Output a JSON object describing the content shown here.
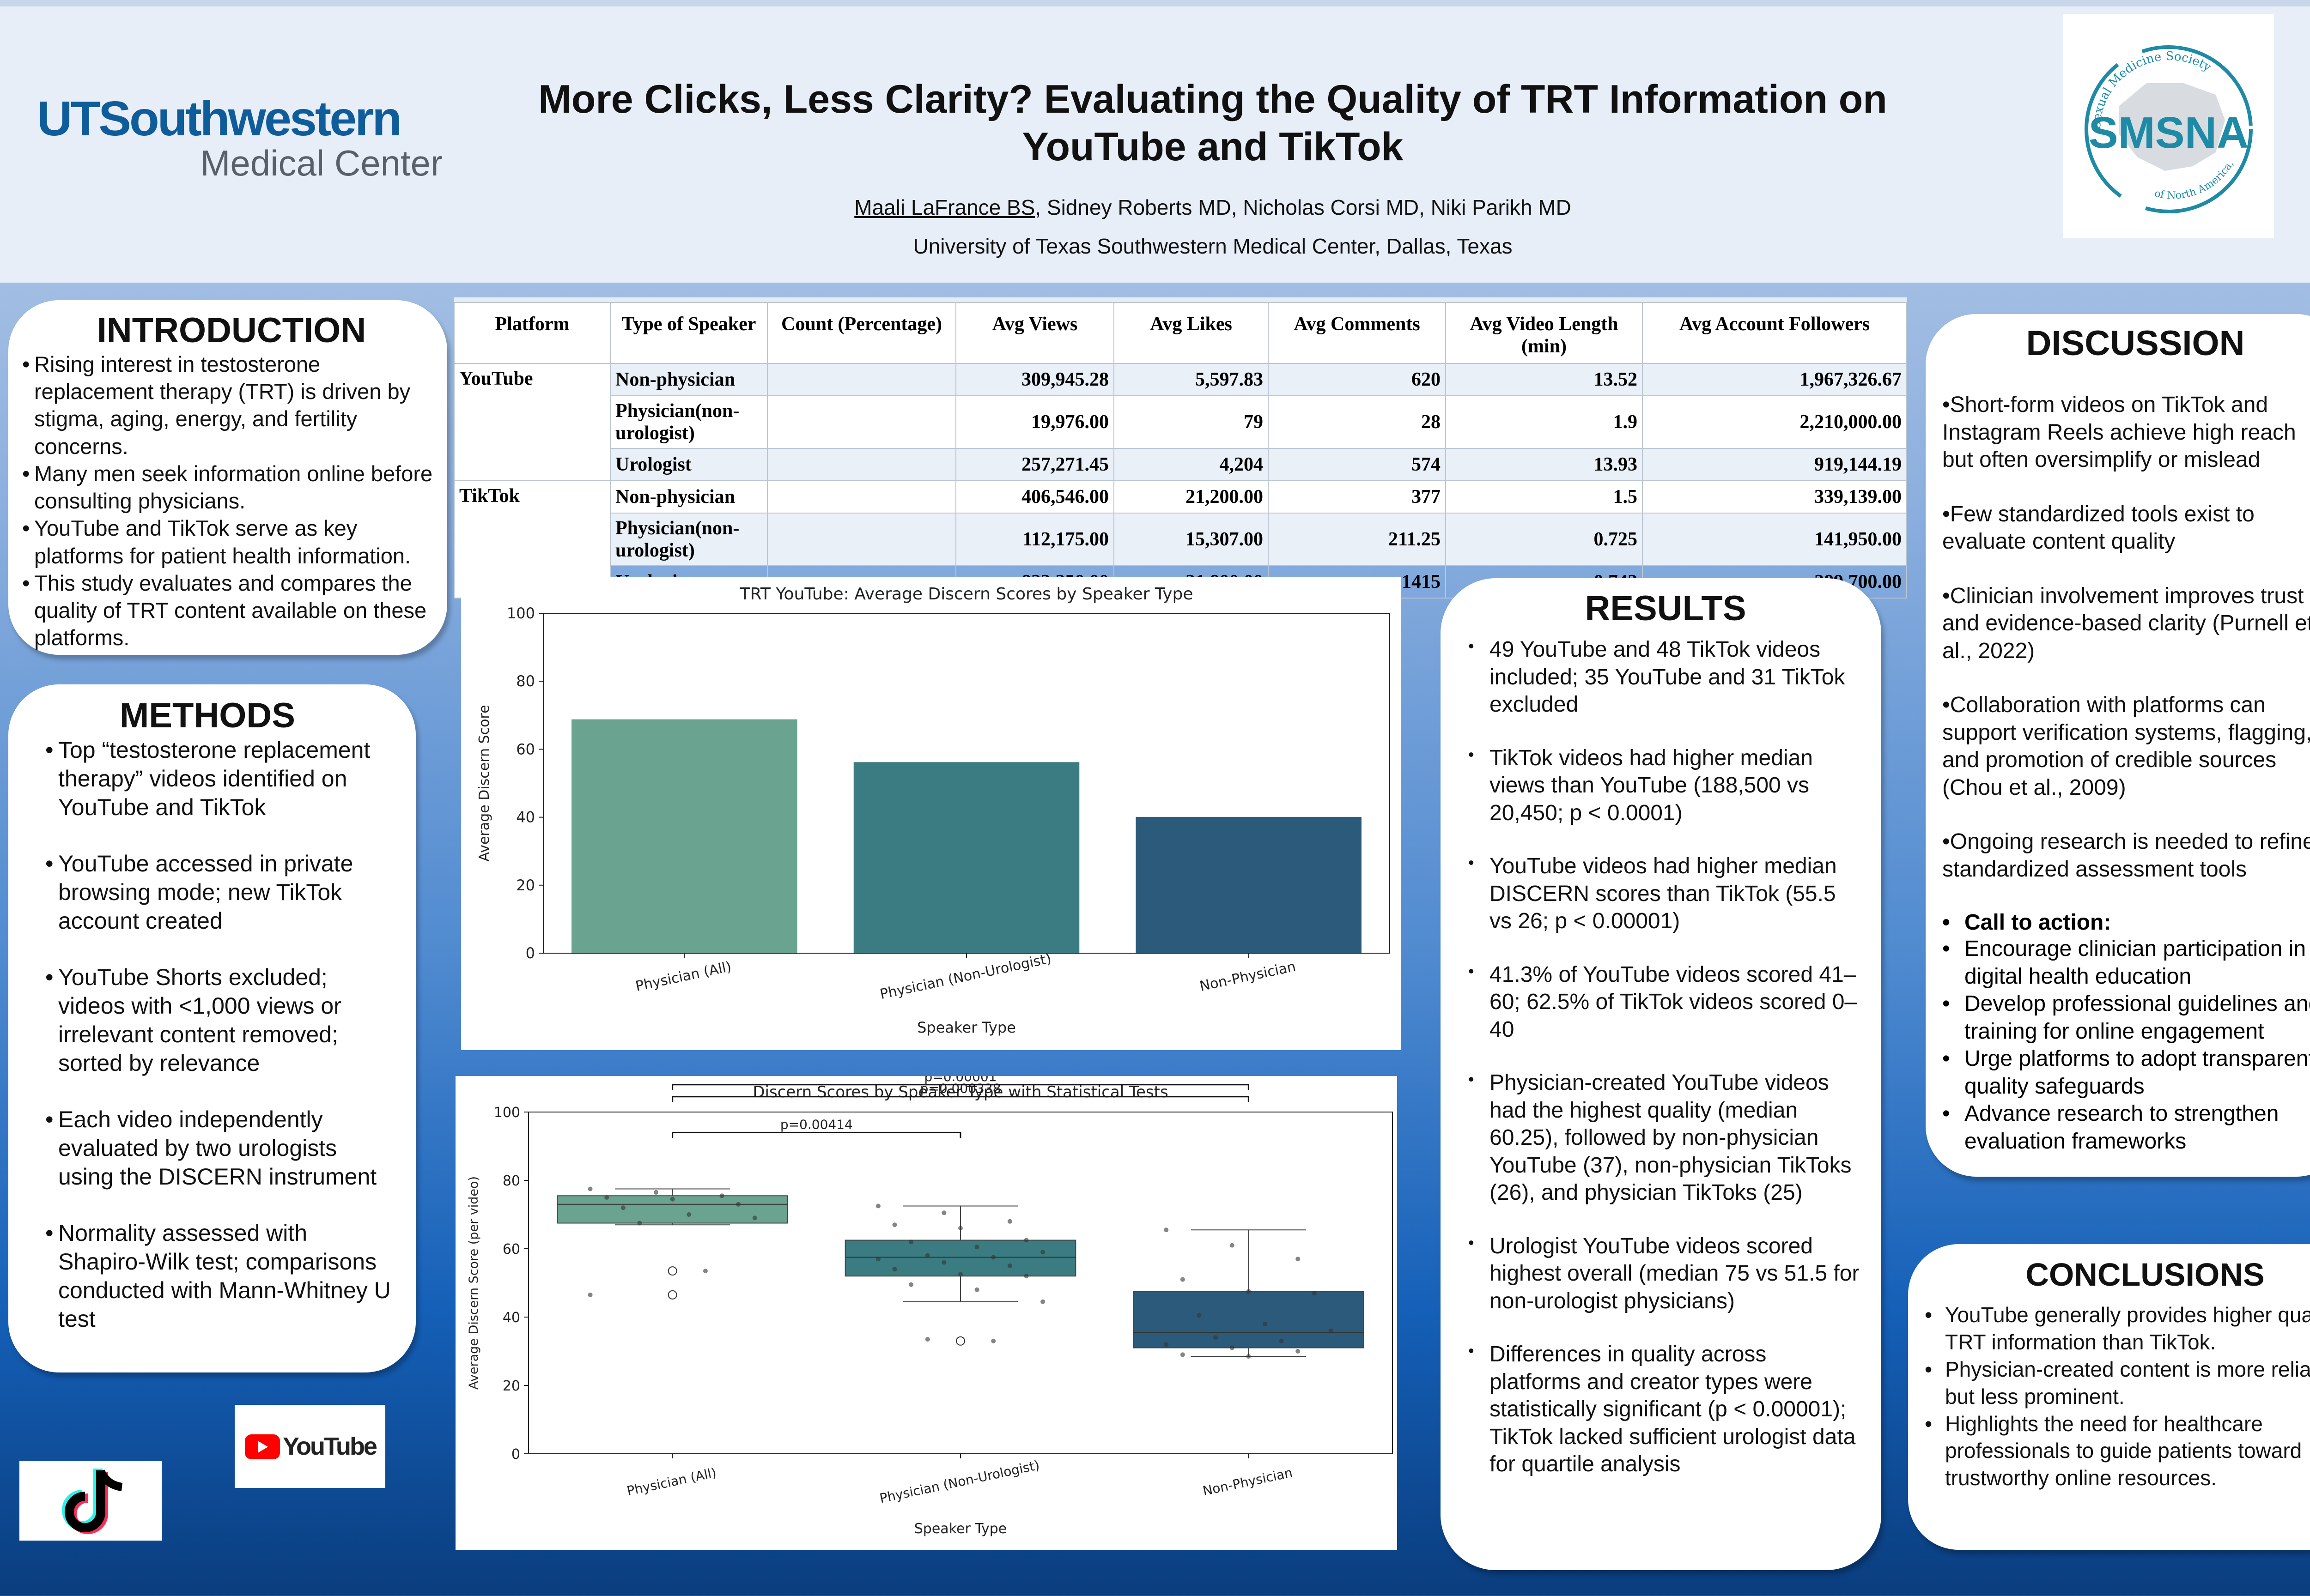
{
  "header": {
    "org_line1": "UTSouthwestern",
    "org_line2": "Medical Center",
    "title": "More Clicks, Less Clarity? Evaluating the Quality of TRT Information on YouTube and TikTok",
    "presenting_author": "Maali LaFrance BS",
    "other_authors": ", Sidney Roberts MD, Nicholas Corsi MD, Niki Parikh MD",
    "affiliation": "University of Texas Southwestern Medical Center, Dallas, Texas",
    "society_arc_top": "Sexual Medicine Society",
    "society_name": "SMSNA",
    "society_arc_bottom": "of North America, Inc."
  },
  "introduction": {
    "heading": "INTRODUCTION",
    "bullets": [
      "Rising interest in testosterone replacement therapy (TRT) is driven by stigma, aging, energy, and fertility concerns.",
      "Many men seek information online before consulting physicians.",
      "YouTube and TikTok serve as key platforms for patient health information.",
      "This study evaluates and compares the quality of TRT content available on these platforms."
    ]
  },
  "methods": {
    "heading": "METHODS",
    "bullets": [
      "Top “testosterone replacement therapy” videos identified on YouTube and TikTok",
      "YouTube accessed in private browsing mode; new TikTok account created",
      "YouTube Shorts excluded; videos with <1,000 views or irrelevant content removed; sorted by relevance",
      "Each video independently evaluated by two urologists using the DISCERN instrument",
      "Normality assessed with Shapiro-Wilk test; comparisons conducted with Mann-Whitney U test"
    ]
  },
  "table": {
    "headers": [
      "Platform",
      "Type of Speaker",
      "Count (Percentage)",
      "Avg Views",
      "Avg Likes",
      "Avg Comments",
      "Avg Video Length (min)",
      "Avg Account Followers"
    ],
    "platforms": [
      "YouTube",
      "TikTok"
    ],
    "rows": [
      {
        "speaker": "Non-physician",
        "count": "",
        "views": "309,945.28",
        "likes": "5,597.83",
        "comments": "620",
        "length": "13.52",
        "followers": "1,967,326.67"
      },
      {
        "speaker": "Physician(non-urologist)",
        "count": "",
        "views": "19,976.00",
        "likes": "79",
        "comments": "28",
        "length": "1.9",
        "followers": "2,210,000.00"
      },
      {
        "speaker": "Urologist",
        "count": "",
        "views": "257,271.45",
        "likes": "4,204",
        "comments": "574",
        "length": "13.93",
        "followers": "919,144.19"
      },
      {
        "speaker": "Non-physician",
        "count": "",
        "views": "406,546.00",
        "likes": "21,200.00",
        "comments": "377",
        "length": "1.5",
        "followers": "339,139.00"
      },
      {
        "speaker": "Physician(non-urologist)",
        "count": "",
        "views": "112,175.00",
        "likes": "15,307.00",
        "comments": "211.25",
        "length": "0.725",
        "followers": "141,950.00"
      },
      {
        "speaker": "Urologist",
        "count": "",
        "views": "823,250.00",
        "likes": "21,800.00",
        "comments": "1415",
        "length": "0.742",
        "followers": "289,700.00"
      }
    ]
  },
  "chart_data": [
    {
      "type": "bar",
      "title": "TRT YouTube: Average Discern Scores by Speaker Type",
      "xlabel": "Speaker Type",
      "ylabel": "Average Discern Score",
      "categories": [
        "Physician (All)",
        "Physician (Non-Urologist)",
        "Non-Physician"
      ],
      "values": [
        68.8,
        56.2,
        40.1
      ],
      "ylim": [
        0,
        100
      ],
      "yticks": [
        "0",
        "20",
        "40",
        "60",
        "80",
        "100"
      ],
      "colors": [
        "#6aa38f",
        "#3b7b82",
        "#2c5a7a"
      ]
    },
    {
      "type": "box",
      "title": "Discern Scores by Speaker Type with Statistical Tests",
      "xlabel": "Speaker Type",
      "ylabel": "Average Discern Score (per video)",
      "categories": [
        "Physician (All)",
        "Physician (Non-Urologist)",
        "Non-Physician"
      ],
      "ylim": [
        0,
        100
      ],
      "yticks": [
        "0",
        "20",
        "40",
        "60",
        "80",
        "100"
      ],
      "boxes": [
        {
          "whisker_low": 67,
          "q1": 67.5,
          "median": 73,
          "q3": 75.5,
          "whisker_high": 77.5,
          "outliers": [
            53.5,
            46.5
          ],
          "points": [
            77.5,
            76.5,
            75.5,
            75,
            74.5,
            73,
            72,
            70,
            69,
            67.5,
            53.5,
            46.5
          ]
        },
        {
          "whisker_low": 44.5,
          "q1": 52,
          "median": 57.5,
          "q3": 62.5,
          "whisker_high": 72.5,
          "outliers": [
            33
          ],
          "points": [
            72.5,
            70.5,
            68,
            67,
            66,
            62.5,
            62,
            60.5,
            59,
            58,
            57.5,
            57,
            56,
            55,
            54,
            52.5,
            52,
            49.5,
            48,
            44.5,
            33.5,
            33
          ]
        },
        {
          "whisker_low": 28.5,
          "q1": 31,
          "median": 35.5,
          "q3": 47.5,
          "whisker_high": 65.5,
          "outliers": [],
          "points": [
            65.5,
            61,
            57,
            51,
            47.5,
            47,
            40.5,
            38,
            36,
            34,
            33,
            32,
            31,
            30,
            29,
            28.5
          ]
        }
      ],
      "colors": [
        "#6aa38f",
        "#3b7b82",
        "#2c5a7a"
      ],
      "annotations": [
        "p=0.00414",
        "p=0.000338",
        "p=0.00001"
      ]
    }
  ],
  "results": {
    "heading": "RESULTS",
    "bullets": [
      "49 YouTube and 48 TikTok videos included; 35 YouTube and 31 TikTok excluded",
      "TikTok videos had higher median views than YouTube (188,500 vs 20,450; p < 0.0001)",
      "YouTube videos had higher median DISCERN scores than TikTok (55.5 vs 26; p < 0.00001)",
      "41.3% of YouTube videos scored 41–60; 62.5% of TikTok videos scored 0–40",
      "Physician-created YouTube videos had the highest quality (median 60.25), followed by non-physician YouTube (37), non-physician TikToks (26), and physician TikToks (25)",
      "Urologist YouTube videos scored highest overall (median 75 vs 51.5 for non-urologist physicians)",
      "Differences in quality across platforms and creator types were statistically significant (p < 0.00001); TikTok lacked sufficient urologist data for quartile analysis"
    ]
  },
  "discussion": {
    "heading": "DISCUSSION",
    "bullets": [
      "•Short-form videos on TikTok and Instagram Reels achieve high reach but often oversimplify or mislead",
      "•Few standardized tools exist to evaluate content quality",
      "•Clinician involvement improves trust and evidence-based clarity (Purnell et al., 2022)",
      "•Collaboration with platforms can support verification systems, flagging, and promotion of credible sources (Chou et al., 2009)",
      "•Ongoing research is needed to refine standardized assessment tools"
    ],
    "cta_title": "Call to action:",
    "cta_items": [
      "Encourage clinician participation in digital health education",
      "Develop professional guidelines and training for online engagement",
      "Urge platforms to adopt transparent quality safeguards",
      "Advance research to strengthen evaluation frameworks"
    ]
  },
  "conclusions": {
    "heading": "CONCLUSIONS",
    "bullets": [
      "YouTube generally provides higher quality TRT information than TikTok.",
      "Physician-created content is more reliable but less prominent.",
      "Highlights the need for healthcare professionals to guide patients toward trustworthy online resources."
    ]
  },
  "logos": {
    "youtube": "YouTube",
    "tiktok_icon": "tiktok-note-icon"
  }
}
